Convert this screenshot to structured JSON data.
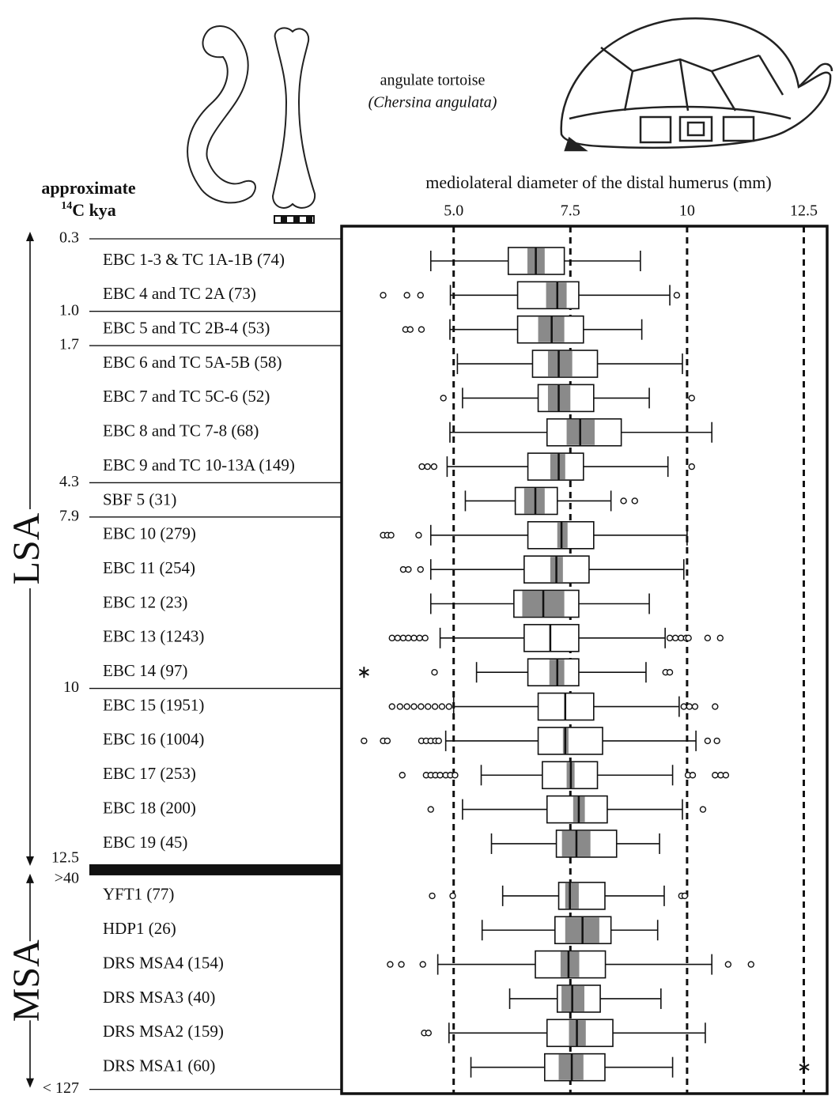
{
  "chart_data": {
    "type": "box",
    "title": "mediolateral diameter of the distal humerus (mm)",
    "y_axis_title": "approximate",
    "y_axis_unit_sup": "14",
    "y_axis_unit": "C kya",
    "annotation": {
      "common_name": "angulate tortoise",
      "scientific_name": "(Chersina angulata)"
    },
    "xlim": [
      2.6,
      13.0
    ],
    "xticks": [
      {
        "value": 5,
        "label": "5.0"
      },
      7.5,
      10,
      12.5
    ],
    "grid": true,
    "box_color": "#ffffff",
    "ci_color": "#8a8a8a",
    "periods": [
      {
        "name": "LSA",
        "top_age": "0.3",
        "bottom_age": "12.5",
        "rows": [
          {
            "label": "EBC 1-3 & TC 1A-1B (74)",
            "whislo": 4.51,
            "q1": 6.17,
            "med": 6.76,
            "q3": 7.37,
            "whishi": 9.0,
            "ci_lo": 6.58,
            "ci_hi": 6.95
          },
          {
            "label": "EBC 4 and TC 2A  (73)",
            "whislo": 4.93,
            "q1": 6.37,
            "med": 7.22,
            "q3": 7.68,
            "whishi": 9.63,
            "ci_lo": 6.98,
            "ci_hi": 7.42,
            "outliers": [
              3.49,
              4.0,
              4.29,
              9.78
            ]
          },
          {
            "label": "EBC 5 and TC 2B-4 (53)",
            "age_above": "1.0",
            "whislo": 4.92,
            "q1": 6.37,
            "med": 7.1,
            "q3": 7.78,
            "whishi": 9.03,
            "ci_lo": 6.81,
            "ci_hi": 7.37,
            "outliers": [
              3.97,
              4.07,
              4.31
            ]
          },
          {
            "label": "EBC 6 and TC 5A-5B (58)",
            "age_above": "1.7",
            "whislo": 5.08,
            "q1": 6.69,
            "med": 7.25,
            "q3": 8.08,
            "whishi": 9.9,
            "ci_lo": 7.02,
            "ci_hi": 7.54
          },
          {
            "label": "EBC 7 and TC 5C-6 (52)",
            "whislo": 5.19,
            "q1": 6.81,
            "med": 7.25,
            "q3": 8.0,
            "whishi": 9.19,
            "ci_lo": 7.02,
            "ci_hi": 7.5,
            "outliers": [
              4.78,
              10.1
            ]
          },
          {
            "label": "EBC 8 and TC 7-8 (68)",
            "whislo": 4.92,
            "q1": 7.0,
            "med": 7.71,
            "q3": 8.59,
            "whishi": 10.53,
            "ci_lo": 7.42,
            "ci_hi": 8.02
          },
          {
            "label": "EBC 9 and TC 10-13A (149)",
            "whislo": 4.86,
            "q1": 6.59,
            "med": 7.25,
            "q3": 7.78,
            "whishi": 9.59,
            "ci_lo": 7.07,
            "ci_hi": 7.39,
            "outliers": [
              4.32,
              4.44,
              4.58,
              10.1
            ]
          },
          {
            "label": "SBF 5 (31)",
            "age_above": "4.3",
            "whislo": 5.25,
            "q1": 6.32,
            "med": 6.75,
            "q3": 7.22,
            "whishi": 8.37,
            "ci_lo": 6.51,
            "ci_hi": 6.95,
            "outliers": [
              8.64,
              8.88
            ]
          },
          {
            "label": "EBC 10 (279)",
            "age_above": "7.9",
            "whislo": 4.51,
            "q1": 6.59,
            "med": 7.31,
            "q3": 8.0,
            "whishi": 10.0,
            "ci_lo": 7.22,
            "ci_hi": 7.44,
            "outliers": [
              3.49,
              3.58,
              3.66,
              4.25
            ]
          },
          {
            "label": "EBC 11 (254)",
            "whislo": 4.51,
            "q1": 6.51,
            "med": 7.2,
            "q3": 7.9,
            "whishi": 9.93,
            "ci_lo": 7.07,
            "ci_hi": 7.34,
            "outliers": [
              3.92,
              4.03,
              4.29
            ]
          },
          {
            "label": "EBC 12 (23)",
            "whislo": 4.51,
            "q1": 6.29,
            "med": 6.92,
            "q3": 7.68,
            "whishi": 9.19,
            "ci_lo": 6.47,
            "ci_hi": 7.37
          },
          {
            "label": "EBC 13 (1243)",
            "whislo": 4.71,
            "q1": 6.51,
            "med": 7.07,
            "q3": 7.68,
            "whishi": 9.53,
            "outliers": [
              3.68,
              3.8,
              3.92,
              4.03,
              4.15,
              4.27,
              4.39,
              9.63,
              9.75,
              9.87,
              9.98,
              10.03,
              10.44,
              10.71
            ]
          },
          {
            "label": "EBC 14 (97)",
            "whislo": 5.49,
            "q1": 6.59,
            "med": 7.22,
            "q3": 7.68,
            "whishi": 9.12,
            "ci_lo": 7.05,
            "ci_hi": 7.37,
            "outliers": [
              4.59,
              9.54,
              9.63
            ],
            "extremes": [
              3.08
            ]
          },
          {
            "label": "EBC 15 (1951)",
            "age_above": "10",
            "whislo": 5.0,
            "q1": 6.81,
            "med": 7.39,
            "q3": 8.0,
            "whishi": 9.83,
            "outliers": [
              3.68,
              3.85,
              4.0,
              4.15,
              4.3,
              4.45,
              4.6,
              4.75,
              4.9,
              9.93,
              10.05,
              10.17,
              10.6
            ]
          },
          {
            "label": "EBC 16 (1004)",
            "whislo": 4.83,
            "q1": 6.81,
            "med": 7.39,
            "q3": 8.19,
            "whishi": 10.19,
            "ci_lo": 7.34,
            "ci_hi": 7.46,
            "outliers": [
              3.08,
              3.49,
              3.58,
              4.31,
              4.41,
              4.51,
              4.61,
              4.68,
              10.44,
              10.64
            ]
          },
          {
            "label": "EBC 17 (253)",
            "whislo": 5.59,
            "q1": 6.9,
            "med": 7.51,
            "q3": 8.08,
            "whishi": 9.69,
            "ci_lo": 7.42,
            "ci_hi": 7.59,
            "outliers": [
              3.9,
              4.41,
              4.51,
              4.61,
              4.71,
              4.83,
              4.93,
              5.03,
              10.02,
              10.12,
              10.6,
              10.72,
              10.83
            ]
          },
          {
            "label": "EBC 18 (200)",
            "whislo": 5.19,
            "q1": 7.0,
            "med": 7.68,
            "q3": 8.29,
            "whishi": 9.9,
            "ci_lo": 7.56,
            "ci_hi": 7.81,
            "outliers": [
              4.51,
              10.34
            ]
          },
          {
            "label": "EBC 19 (45)",
            "whislo": 5.81,
            "q1": 7.2,
            "med": 7.63,
            "q3": 8.49,
            "whishi": 9.41,
            "ci_lo": 7.32,
            "ci_hi": 7.93
          }
        ]
      },
      {
        "name": "MSA",
        "top_age": ">40",
        "bottom_age": "< 127",
        "rows": [
          {
            "label": "YFT1 (77)",
            "whislo": 6.05,
            "q1": 7.25,
            "med": 7.49,
            "q3": 8.24,
            "whishi": 9.51,
            "ci_lo": 7.39,
            "ci_hi": 7.68,
            "outliers": [
              4.54,
              4.98,
              9.88,
              9.95
            ]
          },
          {
            "label": "HDP1 (26)",
            "whislo": 5.61,
            "q1": 7.17,
            "med": 7.76,
            "q3": 8.37,
            "whishi": 9.37,
            "ci_lo": 7.39,
            "ci_hi": 8.12
          },
          {
            "label": "DRS MSA4 (154)",
            "whislo": 4.66,
            "q1": 6.75,
            "med": 7.46,
            "q3": 8.25,
            "whishi": 10.53,
            "ci_lo": 7.29,
            "ci_hi": 7.69,
            "outliers": [
              3.64,
              3.88,
              4.34,
              10.88,
              11.37
            ]
          },
          {
            "label": "DRS MSA3 (40)",
            "whislo": 6.2,
            "q1": 7.22,
            "med": 7.54,
            "q3": 8.14,
            "whishi": 9.44,
            "ci_lo": 7.31,
            "ci_hi": 7.8
          },
          {
            "label": "DRS MSA2 (159)",
            "whislo": 4.9,
            "q1": 7.0,
            "med": 7.64,
            "q3": 8.41,
            "whishi": 10.39,
            "ci_lo": 7.47,
            "ci_hi": 7.83,
            "outliers": [
              4.37,
              4.46
            ]
          },
          {
            "label": "DRS MSA1 (60)",
            "whislo": 5.37,
            "q1": 6.95,
            "med": 7.53,
            "q3": 8.24,
            "whishi": 9.69,
            "ci_lo": 7.25,
            "ci_hi": 7.78,
            "extremes": [
              12.51
            ]
          }
        ]
      }
    ]
  }
}
